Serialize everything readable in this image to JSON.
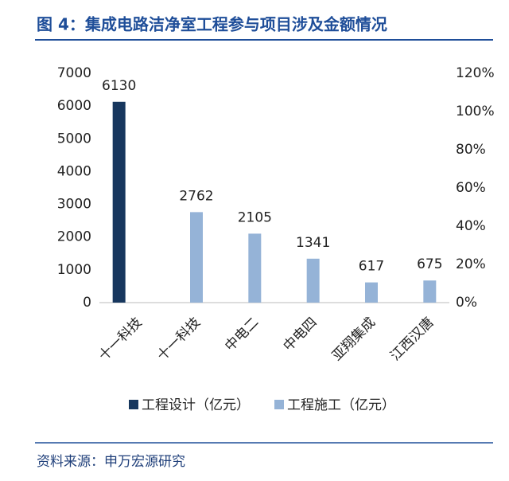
{
  "header": {
    "title": "图 4：集成电路洁净室工程参与项目涉及金额情况"
  },
  "chart_data": {
    "type": "bar",
    "categories": [
      "十一科技",
      "十一科技",
      "中电二",
      "中电四",
      "亚翔集成",
      "江西汉唐"
    ],
    "series": [
      {
        "name": "工程设计（亿元）",
        "color": "#17375e",
        "values": [
          6130,
          null,
          null,
          null,
          null,
          null
        ]
      },
      {
        "name": "工程施工（亿元）",
        "color": "#95b3d7",
        "values": [
          null,
          2762,
          2105,
          1341,
          617,
          675
        ]
      }
    ],
    "ylim": [
      0,
      7000
    ],
    "yticks": [
      0,
      1000,
      2000,
      3000,
      4000,
      5000,
      6000,
      7000
    ],
    "y2lim": [
      0,
      120
    ],
    "y2ticks": [
      {
        "value": 0,
        "label": "0%"
      },
      {
        "value": 20,
        "label": "20%"
      },
      {
        "value": 40,
        "label": "40%"
      },
      {
        "value": 60,
        "label": "60%"
      },
      {
        "value": 80,
        "label": "80%"
      },
      {
        "value": 100,
        "label": "100%"
      },
      {
        "value": 120,
        "label": "120%"
      }
    ],
    "legend": "bottom"
  },
  "footer": {
    "source": "资料来源：申万宏源研究"
  }
}
